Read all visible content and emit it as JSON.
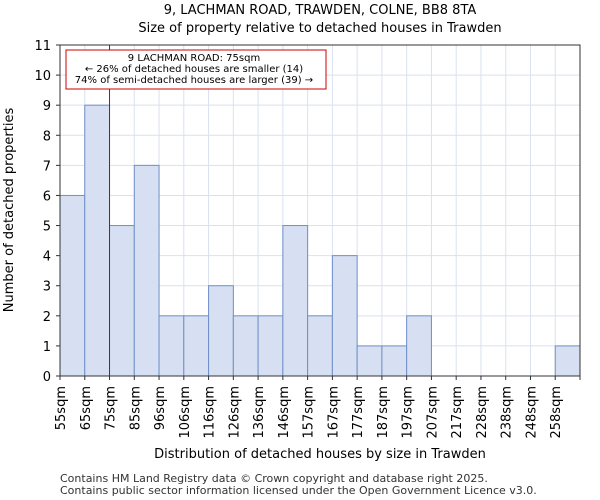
{
  "chart_data": {
    "type": "bar",
    "title": "9, LACHMAN ROAD, TRAWDEN, COLNE, BB8 8TA",
    "subtitle": "Size of property relative to detached houses in Trawden",
    "xlabel": "Distribution of detached houses by size in Trawden",
    "ylabel": "Number of detached properties",
    "categories": [
      "55sqm",
      "65sqm",
      "75sqm",
      "85sqm",
      "96sqm",
      "106sqm",
      "116sqm",
      "126sqm",
      "136sqm",
      "146sqm",
      "157sqm",
      "167sqm",
      "177sqm",
      "187sqm",
      "197sqm",
      "207sqm",
      "217sqm",
      "228sqm",
      "238sqm",
      "248sqm",
      "258sqm"
    ],
    "values": [
      6,
      9,
      5,
      7,
      2,
      2,
      3,
      2,
      2,
      5,
      2,
      4,
      1,
      1,
      2,
      0,
      0,
      0,
      0,
      0,
      1
    ],
    "ylim": [
      0,
      11
    ],
    "yticks": [
      0,
      1,
      2,
      3,
      4,
      5,
      6,
      7,
      8,
      9,
      10,
      11
    ],
    "grid": true,
    "marker": {
      "value_sqm": 75,
      "category_index": 2,
      "color": "#cc0000"
    },
    "annotation": {
      "lines": [
        "9 LACHMAN ROAD: 75sqm",
        "← 26% of detached houses are smaller (14)",
        "74% of semi-detached houses are larger (39) →"
      ]
    },
    "colors": {
      "bar_fill": "#d6e0f2",
      "bar_stroke": "#6f8fc8",
      "grid": "#d9e1ef",
      "marker": "#cc0000"
    }
  },
  "footer": {
    "line1": "Contains HM Land Registry data © Crown copyright and database right 2025.",
    "line2": "Contains public sector information licensed under the Open Government Licence v3.0."
  }
}
